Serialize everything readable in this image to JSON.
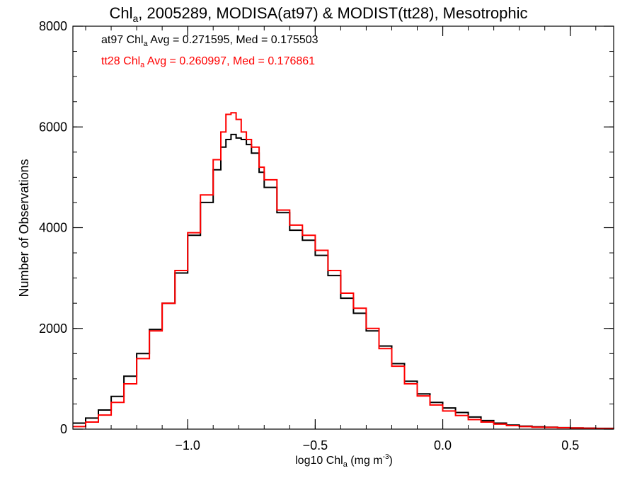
{
  "chart_data": {
    "type": "line",
    "title": {
      "main": "Chl",
      "main_sub": "a",
      "rest": ", 2005289, MODISA(at97) & MODIST(tt28), Mesotrophic"
    },
    "xlabel": {
      "pre": "log10 Chl",
      "sub": "a",
      "post": " (mg m",
      "sup": "-3",
      "close": ")"
    },
    "ylabel": "Number of Observations",
    "xlim": [
      -1.45,
      0.67
    ],
    "ylim": [
      0,
      8000
    ],
    "x_ticks": [
      -1.0,
      -0.5,
      0.0,
      0.5
    ],
    "x_tick_labels": [
      "−1.0",
      "−0.5",
      "0.0",
      "0.5"
    ],
    "y_ticks": [
      0,
      2000,
      4000,
      6000,
      8000
    ],
    "y_tick_labels": [
      "0",
      "2000",
      "4000",
      "6000",
      "8000"
    ],
    "grid": false,
    "annotations": [
      {
        "series": "at97",
        "color": "#000000",
        "pre": "at97 Chl",
        "sub": "a",
        "post": " Avg = 0.271595, Med = 0.175503"
      },
      {
        "series": "tt28",
        "color": "#ff0000",
        "pre": "tt28 Chl",
        "sub": "a",
        "post": " Avg = 0.260997, Med = 0.176861"
      }
    ],
    "series": [
      {
        "name": "at97",
        "color": "#000000",
        "points": [
          [
            -1.45,
            120
          ],
          [
            -1.4,
            220
          ],
          [
            -1.35,
            380
          ],
          [
            -1.3,
            650
          ],
          [
            -1.25,
            1050
          ],
          [
            -1.2,
            1500
          ],
          [
            -1.15,
            1980
          ],
          [
            -1.1,
            2500
          ],
          [
            -1.05,
            3100
          ],
          [
            -1.0,
            3850
          ],
          [
            -0.95,
            4500
          ],
          [
            -0.9,
            5150
          ],
          [
            -0.87,
            5600
          ],
          [
            -0.85,
            5750
          ],
          [
            -0.83,
            5850
          ],
          [
            -0.81,
            5780
          ],
          [
            -0.79,
            5750
          ],
          [
            -0.77,
            5650
          ],
          [
            -0.75,
            5480
          ],
          [
            -0.72,
            5100
          ],
          [
            -0.7,
            4800
          ],
          [
            -0.65,
            4300
          ],
          [
            -0.6,
            3950
          ],
          [
            -0.55,
            3750
          ],
          [
            -0.5,
            3450
          ],
          [
            -0.45,
            3050
          ],
          [
            -0.4,
            2600
          ],
          [
            -0.35,
            2300
          ],
          [
            -0.3,
            1950
          ],
          [
            -0.25,
            1650
          ],
          [
            -0.2,
            1300
          ],
          [
            -0.15,
            950
          ],
          [
            -0.1,
            700
          ],
          [
            -0.05,
            530
          ],
          [
            0.0,
            420
          ],
          [
            0.05,
            330
          ],
          [
            0.1,
            240
          ],
          [
            0.15,
            170
          ],
          [
            0.2,
            120
          ],
          [
            0.25,
            80
          ],
          [
            0.3,
            60
          ],
          [
            0.35,
            45
          ],
          [
            0.4,
            40
          ],
          [
            0.45,
            30
          ],
          [
            0.5,
            25
          ],
          [
            0.55,
            20
          ],
          [
            0.6,
            15
          ],
          [
            0.67,
            10
          ]
        ]
      },
      {
        "name": "tt28",
        "color": "#ff0000",
        "points": [
          [
            -1.45,
            50
          ],
          [
            -1.4,
            140
          ],
          [
            -1.35,
            280
          ],
          [
            -1.3,
            530
          ],
          [
            -1.25,
            900
          ],
          [
            -1.2,
            1400
          ],
          [
            -1.15,
            1950
          ],
          [
            -1.1,
            2500
          ],
          [
            -1.05,
            3150
          ],
          [
            -1.0,
            3900
          ],
          [
            -0.95,
            4650
          ],
          [
            -0.9,
            5350
          ],
          [
            -0.87,
            5900
          ],
          [
            -0.85,
            6250
          ],
          [
            -0.83,
            6280
          ],
          [
            -0.81,
            6150
          ],
          [
            -0.79,
            5900
          ],
          [
            -0.77,
            5750
          ],
          [
            -0.75,
            5600
          ],
          [
            -0.72,
            5200
          ],
          [
            -0.7,
            4950
          ],
          [
            -0.65,
            4350
          ],
          [
            -0.6,
            4050
          ],
          [
            -0.55,
            3850
          ],
          [
            -0.5,
            3550
          ],
          [
            -0.45,
            3150
          ],
          [
            -0.4,
            2700
          ],
          [
            -0.35,
            2400
          ],
          [
            -0.3,
            2000
          ],
          [
            -0.25,
            1600
          ],
          [
            -0.2,
            1250
          ],
          [
            -0.15,
            900
          ],
          [
            -0.1,
            660
          ],
          [
            -0.05,
            480
          ],
          [
            0.0,
            360
          ],
          [
            0.05,
            270
          ],
          [
            0.1,
            190
          ],
          [
            0.15,
            140
          ],
          [
            0.2,
            100
          ],
          [
            0.25,
            70
          ],
          [
            0.3,
            50
          ],
          [
            0.35,
            40
          ],
          [
            0.4,
            35
          ],
          [
            0.45,
            28
          ],
          [
            0.5,
            22
          ],
          [
            0.55,
            18
          ],
          [
            0.6,
            12
          ],
          [
            0.67,
            8
          ]
        ]
      }
    ]
  }
}
